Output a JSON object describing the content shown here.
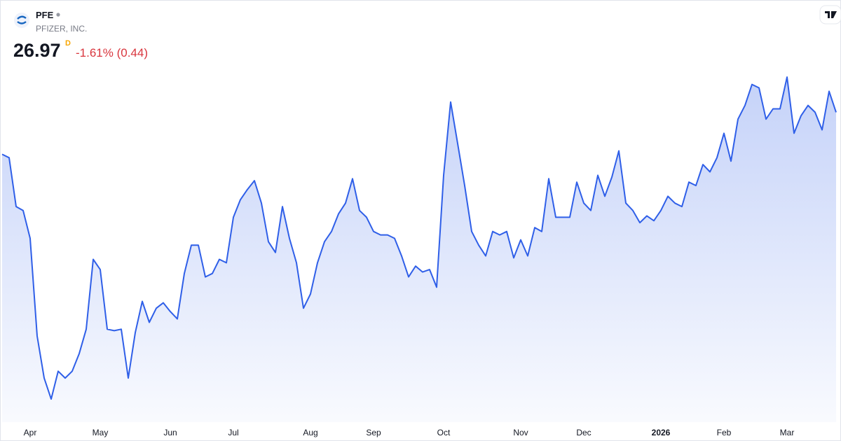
{
  "header": {
    "symbol": "PFE",
    "company": "PFIZER, INC.",
    "price": 26.97,
    "interval": "D",
    "change": "-1.61% (0.44)"
  },
  "chart_data": {
    "type": "area",
    "categories": [
      null,
      null,
      null,
      null,
      "Apr",
      null,
      null,
      null,
      null,
      null,
      null,
      null,
      null,
      null,
      "May",
      null,
      null,
      null,
      null,
      null,
      null,
      null,
      null,
      null,
      "Jun",
      null,
      null,
      null,
      null,
      null,
      null,
      null,
      null,
      "Jul",
      null,
      null,
      null,
      null,
      null,
      null,
      null,
      null,
      null,
      null,
      "Aug",
      null,
      null,
      null,
      null,
      null,
      null,
      null,
      null,
      "Sep",
      null,
      null,
      null,
      null,
      null,
      null,
      null,
      null,
      null,
      "Oct",
      null,
      null,
      null,
      null,
      null,
      null,
      null,
      null,
      null,
      null,
      "Nov",
      null,
      null,
      null,
      null,
      null,
      null,
      null,
      null,
      "Dec",
      null,
      null,
      null,
      null,
      null,
      null,
      null,
      null,
      null,
      null,
      "2026",
      null,
      null,
      null,
      null,
      null,
      null,
      null,
      null,
      "Feb",
      null,
      null,
      null,
      null,
      null,
      null,
      null,
      null,
      "Mar",
      null,
      null,
      null,
      null,
      null,
      null,
      null
    ],
    "values": [
      26.11,
      26.04,
      25.04,
      24.96,
      24.39,
      22.39,
      21.53,
      21.1,
      21.67,
      21.53,
      21.67,
      22.03,
      22.53,
      23.96,
      23.75,
      22.53,
      22.5,
      22.53,
      21.53,
      22.46,
      23.1,
      22.67,
      22.96,
      23.07,
      22.89,
      22.74,
      23.67,
      24.25,
      24.25,
      23.6,
      23.67,
      23.96,
      23.89,
      24.82,
      25.18,
      25.39,
      25.57,
      25.11,
      24.32,
      24.1,
      25.04,
      24.39,
      23.89,
      22.96,
      23.25,
      23.89,
      24.32,
      24.53,
      24.89,
      25.11,
      25.61,
      24.96,
      24.82,
      24.53,
      24.46,
      24.46,
      24.39,
      24.03,
      23.6,
      23.82,
      23.7,
      23.75,
      23.39,
      25.68,
      27.18,
      26.33,
      25.47,
      24.53,
      24.25,
      24.03,
      24.53,
      24.46,
      24.53,
      23.99,
      24.36,
      24.03,
      24.61,
      24.53,
      25.61,
      24.82,
      24.82,
      24.82,
      25.54,
      25.11,
      24.96,
      25.68,
      25.25,
      25.64,
      26.18,
      25.11,
      24.96,
      24.71,
      24.85,
      24.75,
      24.96,
      25.25,
      25.11,
      25.04,
      25.54,
      25.47,
      25.9,
      25.75,
      26.04,
      26.54,
      25.97,
      26.83,
      27.11,
      27.54,
      27.47,
      26.83,
      27.04,
      27.04,
      27.69,
      26.54,
      26.9,
      27.11,
      26.97,
      26.61,
      27.4,
      26.97
    ],
    "color": "#2f5fe8",
    "ylim": [
      20.7,
      28.0
    ]
  }
}
